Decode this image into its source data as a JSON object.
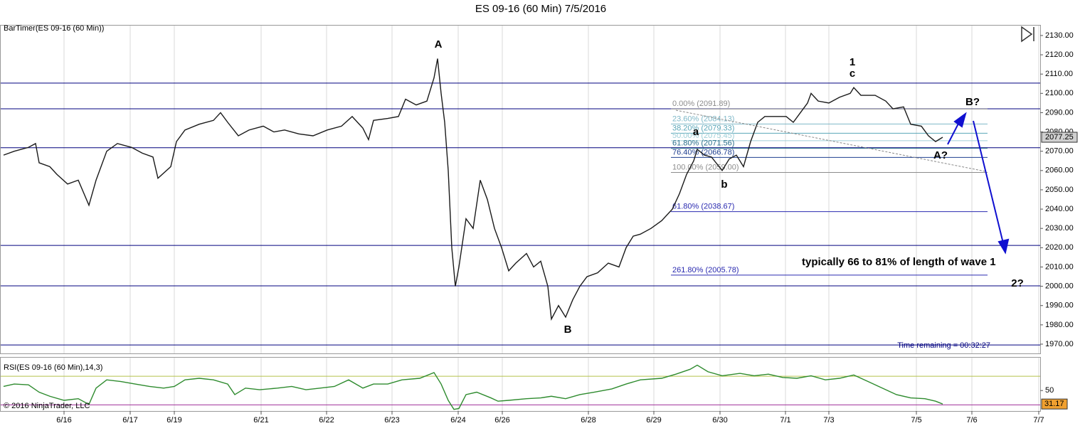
{
  "chart_data": [
    {
      "type": "line",
      "title": "ES 09-16 (60 Min)  7/5/2016",
      "label": "BarTimer(ES 09-16 (60 Min))",
      "timer": "Time remaining = 00:32:27",
      "color": "#1a1a1a",
      "x": [
        1.25,
        5,
        10,
        12.5,
        13.75,
        17.5,
        20,
        23.75,
        27.5,
        31.25,
        33.75,
        37.5,
        41.25,
        46.25,
        50,
        53.75,
        55.5,
        60,
        62,
        65,
        70,
        75,
        77.5,
        80,
        83.75,
        87.5,
        92.5,
        96.25,
        100,
        105,
        110,
        115,
        120,
        123.75,
        127.5,
        129.5,
        131.25,
        136.25,
        140,
        142.5,
        146.25,
        150,
        152.5,
        153.75,
        155,
        156.25,
        157.5,
        158.75,
        160,
        161.25,
        163.75,
        166.25,
        168.75,
        171.25,
        173.75,
        176.25,
        178.75,
        181.25,
        185,
        187.5,
        190,
        192.5,
        193.75,
        196.25,
        198.75,
        201.25,
        203.75,
        206.25,
        210,
        213.75,
        217.5,
        220,
        222.5,
        225,
        228.75,
        232.5,
        236.25,
        238.75,
        241.25,
        243.75,
        245,
        247.5,
        250,
        253.75,
        256.25,
        258.75,
        261.25,
        263.75,
        266.25,
        268.75,
        272.5,
        276.25,
        278.75,
        281.25,
        283.75,
        285,
        287.5,
        291.25,
        295,
        298.75,
        300,
        302.5,
        307.5,
        311.25,
        313.75,
        317.5,
        320,
        323.75,
        326.25,
        328.75,
        331.25
      ],
      "values": [
        2068,
        2070,
        2072,
        2074,
        2064,
        2062,
        2058,
        2053,
        2055,
        2042,
        2055,
        2070,
        2074,
        2072,
        2069,
        2067,
        2056,
        2062,
        2075,
        2081,
        2084,
        2086,
        2090,
        2085,
        2078,
        2081,
        2083,
        2080,
        2081,
        2079,
        2078,
        2081,
        2083,
        2088,
        2082,
        2076,
        2086,
        2087,
        2088,
        2097,
        2094,
        2096,
        2108,
        2118,
        2100,
        2085,
        2060,
        2020,
        2000,
        2010,
        2035,
        2030,
        2055,
        2045,
        2030,
        2020,
        2008,
        2012,
        2017,
        2010,
        2013,
        2000,
        1983,
        1990,
        1984,
        1993,
        2000,
        2005,
        2007,
        2012,
        2010,
        2020,
        2026,
        2027,
        2030,
        2034,
        2040,
        2048,
        2058,
        2065,
        2071,
        2068,
        2067,
        2060,
        2066,
        2068,
        2062,
        2075,
        2085,
        2088,
        2088,
        2088,
        2085,
        2090,
        2095,
        2100,
        2096,
        2095,
        2098,
        2100,
        2103,
        2099,
        2099,
        2096,
        2092,
        2093,
        2084,
        2083,
        2078,
        2075,
        2077.25
      ],
      "xlim": [
        0,
        365.5
      ],
      "xticks": [
        {
          "value": 22.5,
          "label": "6/16"
        },
        {
          "value": 45.75,
          "label": "6/17"
        },
        {
          "value": 61.25,
          "label": "6/19"
        },
        {
          "value": 91.75,
          "label": "6/21"
        },
        {
          "value": 114.75,
          "label": "6/22"
        },
        {
          "value": 137.75,
          "label": "6/23"
        },
        {
          "value": 161,
          "label": "6/24"
        },
        {
          "value": 176.5,
          "label": "6/26"
        },
        {
          "value": 206.75,
          "label": "6/28"
        },
        {
          "value": 229.75,
          "label": "6/29"
        },
        {
          "value": 253,
          "label": "6/30"
        },
        {
          "value": 276,
          "label": "7/1"
        },
        {
          "value": 291.25,
          "label": "7/3"
        },
        {
          "value": 322,
          "label": "7/5"
        },
        {
          "value": 341.5,
          "label": "7/6"
        },
        {
          "value": 365,
          "label": "7/7"
        }
      ],
      "ylim": [
        1965.2,
        2135.5
      ],
      "yticks": [
        {
          "value": 1970,
          "label": "1970.00"
        },
        {
          "value": 1980,
          "label": "1980.00"
        },
        {
          "value": 1990,
          "label": "1990.00"
        },
        {
          "value": 2000,
          "label": "2000.00"
        },
        {
          "value": 2010,
          "label": "2010.00"
        },
        {
          "value": 2020,
          "label": "2020.00"
        },
        {
          "value": 2030,
          "label": "2030.00"
        },
        {
          "value": 2040,
          "label": "2040.00"
        },
        {
          "value": 2050,
          "label": "2050.00"
        },
        {
          "value": 2060,
          "label": "2060.00"
        },
        {
          "value": 2070,
          "label": "2070.00"
        },
        {
          "value": 2080,
          "label": "2080.00"
        },
        {
          "value": 2090,
          "label": "2090.00"
        },
        {
          "value": 2100,
          "label": "2100.00"
        },
        {
          "value": 2110,
          "label": "2110.00"
        },
        {
          "value": 2120,
          "label": "2120.00"
        },
        {
          "value": 2130,
          "label": "2130.00"
        }
      ],
      "grid": true,
      "levels": [
        2105.3,
        2092.0,
        2071.8,
        2021.2,
        2000.2,
        1969.6
      ],
      "level_color": "#00007f",
      "fib": [
        {
          "value": 2091.89,
          "label": "0.00% (2091.89)",
          "color": "#8c8c8c"
        },
        {
          "value": 2084.13,
          "label": "23.60% (2084.13)",
          "color": "#7fb8c8"
        },
        {
          "value": 2079.33,
          "label": "38.20% (2079.33)",
          "color": "#5aa6b8"
        },
        {
          "value": 2075.45,
          "label": "50.00% (2075.45)",
          "color": "#9fcfd8"
        },
        {
          "value": 2071.56,
          "label": "61.80% (2071.56)",
          "color": "#2a6f8c"
        },
        {
          "value": 2066.78,
          "label": "76.40% (2066.78)",
          "color": "#1f3f8f"
        },
        {
          "value": 2059.0,
          "label": "100.00% (2059.00)",
          "color": "#8c8c8c"
        },
        {
          "value": 2038.67,
          "label": "61.80% (2038.67)",
          "color": "#2a2ab0"
        },
        {
          "value": 2005.78,
          "label": "261.80% (2005.78)",
          "color": "#2a2ab0"
        }
      ],
      "annotations": [
        "A",
        "B",
        "a",
        "b",
        "1",
        "c",
        "B?",
        "A?",
        "2?",
        "typically 66 to 81% of length of wave 1"
      ]
    },
    {
      "type": "line",
      "title": "RSI(ES 09-16 (60 Min),14,3)",
      "copyright": "© 2016 NinjaTrader, LLC",
      "color": "#2e8b2e",
      "x": [
        1.25,
        5,
        10,
        13.75,
        17.5,
        22.5,
        27.5,
        31.25,
        33.75,
        37.5,
        42.5,
        47.5,
        52.5,
        57.5,
        61.25,
        65,
        70,
        75,
        80,
        82.5,
        86.25,
        91.25,
        97.5,
        102.5,
        107.5,
        112.5,
        117.5,
        122.5,
        127.5,
        131.25,
        136.25,
        141.25,
        147.5,
        152.5,
        155,
        157.5,
        159.5,
        161.25,
        163.75,
        167.5,
        172.5,
        175,
        178.75,
        185,
        190,
        193.75,
        198.75,
        203.75,
        208.75,
        215,
        220,
        225,
        232.5,
        237.5,
        242.5,
        245,
        248.75,
        253.75,
        260,
        265,
        270,
        275,
        280,
        285,
        290,
        295,
        300,
        305,
        310,
        315,
        320,
        325,
        328.75,
        331.25
      ],
      "values": [
        55.7,
        59.1,
        58.0,
        47.7,
        42.0,
        36.3,
        38.6,
        30.6,
        53.4,
        64.9,
        62.6,
        59.1,
        55.7,
        53.4,
        55.7,
        64.9,
        67.1,
        64.9,
        59.1,
        44.3,
        53.4,
        51.1,
        53.4,
        55.7,
        51.1,
        53.4,
        55.7,
        64.9,
        53.4,
        59.1,
        59.1,
        64.9,
        67.1,
        75.1,
        59.1,
        36.3,
        23.7,
        24.9,
        44.3,
        47.7,
        39.7,
        35.1,
        36.3,
        38.6,
        39.7,
        42.0,
        38.6,
        44.3,
        47.7,
        52.3,
        59.1,
        64.9,
        67.1,
        72.9,
        79.7,
        85.4,
        76.3,
        70.6,
        74.0,
        70.6,
        72.9,
        68.3,
        67.1,
        70.6,
        64.9,
        67.1,
        71.7,
        62.6,
        53.4,
        44.3,
        39.7,
        38.6,
        35.1,
        31.17
      ],
      "ylim": [
        21.4,
        96.9
      ],
      "yticks": [
        50
      ],
      "levels": [
        {
          "value": 70,
          "color": "#b5c24a"
        },
        {
          "value": 30,
          "color": "#a0309a"
        }
      ]
    }
  ]
}
